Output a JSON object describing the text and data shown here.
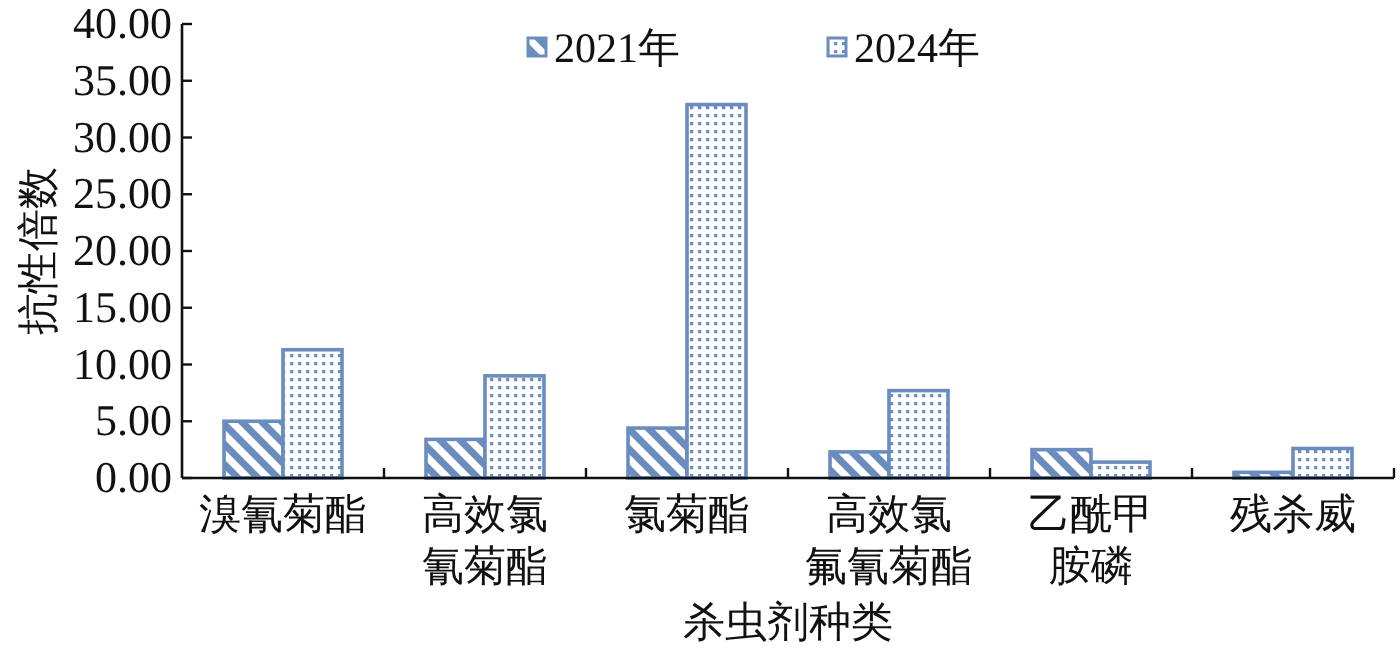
{
  "chart_data": {
    "type": "bar",
    "xlabel": "杀虫剂种类",
    "ylabel": "抗性倍数",
    "categories": [
      "溴氰菊酯",
      "高效氯氰菊酯",
      "氯菊酯",
      "高效氯氟氰菊酯",
      "乙酰甲胺磷",
      "残杀威"
    ],
    "series": [
      {
        "name": "2021年",
        "color": "#6a8cbf",
        "values": [
          5.0,
          3.4,
          4.4,
          2.3,
          2.5,
          0.5
        ]
      },
      {
        "name": "2024年",
        "color": "#6a8cbf",
        "values": [
          11.3,
          9.0,
          32.9,
          7.7,
          1.4,
          2.6
        ]
      }
    ],
    "ylim": [
      0,
      40
    ],
    "yticks": [
      {
        "value": 0,
        "label": "0.00"
      },
      {
        "value": 5,
        "label": "5.00"
      },
      {
        "value": 10,
        "label": "10.00"
      },
      {
        "value": 15,
        "label": "15.00"
      },
      {
        "value": 20,
        "label": "20.00"
      },
      {
        "value": 25,
        "label": "25.00"
      },
      {
        "value": 30,
        "label": "30.00"
      },
      {
        "value": 35,
        "label": "35.00"
      },
      {
        "value": 40,
        "label": "40.00"
      }
    ],
    "legend": "top",
    "grid": false
  }
}
